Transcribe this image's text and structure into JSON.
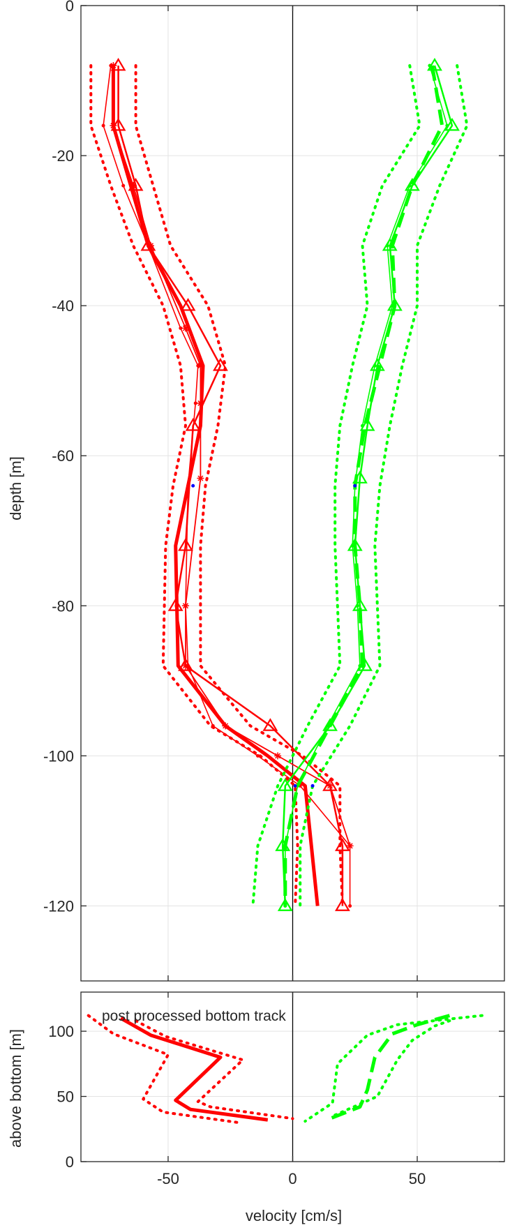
{
  "chart_data": [
    {
      "type": "line",
      "panel": "top",
      "xlabel": "",
      "ylabel": "depth [m]",
      "xlim": [
        -85,
        85
      ],
      "ylim": [
        -130,
        0
      ],
      "xticks": [
        -50,
        0,
        50
      ],
      "yticks": [
        0,
        -20,
        -40,
        -60,
        -80,
        -100,
        -120
      ],
      "ytick_labels": [
        "0",
        "-20",
        "-40",
        "-60",
        "-80",
        "-100",
        "-120"
      ],
      "grid": true,
      "zero_line": true,
      "colors": {
        "u": "#ff0000",
        "v": "#00ff00",
        "dots": "#0000ff",
        "zero": "#000000"
      },
      "series": [
        {
          "component": "u",
          "style": "thick",
          "x": [
            -72,
            -72,
            -65,
            -58,
            -45,
            -36,
            -37,
            -42,
            -47,
            -46,
            -27,
            -10,
            5,
            10
          ],
          "y": [
            -8,
            -16,
            -24,
            -32,
            -40,
            -48,
            -56,
            -64,
            -72,
            -88,
            -96,
            -100,
            -104,
            -120
          ]
        },
        {
          "component": "u",
          "style": "triangles",
          "x": [
            -70,
            -70,
            -63,
            -58,
            -42,
            -29,
            -40,
            -43,
            -47,
            -43,
            -9,
            15,
            20,
            20
          ],
          "y": [
            -8,
            -16,
            -24,
            -32,
            -40,
            -48,
            -56,
            -72,
            -80,
            -88,
            -96,
            -104,
            -112,
            -120
          ]
        },
        {
          "component": "u",
          "style": "stars",
          "x": [
            -72,
            -72,
            -64,
            -57,
            -43,
            -37,
            -37,
            -37,
            -43,
            -43,
            -27,
            -6,
            15,
            23
          ],
          "y": [
            -8,
            -16,
            -24,
            -32,
            -43,
            -48,
            -53,
            -63,
            -80,
            -88,
            -96,
            -100,
            -104,
            -112
          ]
        },
        {
          "component": "u",
          "style": "dots",
          "x": [
            -73,
            -76,
            -68,
            -58,
            -45,
            -38,
            -39,
            -42,
            -43,
            -42,
            -32,
            -14,
            3,
            23,
            23
          ],
          "y": [
            -8,
            -16,
            -24,
            -32,
            -43,
            -48,
            -53,
            -64,
            -80,
            -88,
            -96,
            -100,
            -104,
            -112,
            -120
          ]
        },
        {
          "component": "u",
          "style": "dotted",
          "x": [
            -81,
            -81,
            -73,
            -64,
            -52,
            -45,
            -43,
            -48,
            -51,
            -52,
            -33,
            -13,
            1,
            2,
            1
          ],
          "y": [
            -8,
            -16,
            -24,
            -32,
            -40,
            -48,
            -56,
            -64,
            -72,
            -88,
            -96,
            -100,
            -104,
            -112,
            -120
          ]
        },
        {
          "component": "u",
          "style": "dotted",
          "x": [
            -63,
            -63,
            -56,
            -49,
            -34,
            -27,
            -30,
            -35,
            -37,
            -37,
            -17,
            4,
            19,
            19,
            20
          ],
          "y": [
            -8,
            -16,
            -24,
            -32,
            -40,
            -48,
            -56,
            -64,
            -72,
            -88,
            -96,
            -100,
            -104,
            -112,
            -120
          ]
        },
        {
          "component": "v",
          "style": "dashed",
          "x": [
            56,
            60,
            48,
            40,
            41,
            35,
            29,
            25,
            25,
            27,
            28,
            15,
            2,
            -3,
            -3
          ],
          "y": [
            -8,
            -16,
            -24,
            -32,
            -40,
            -48,
            -56,
            -64,
            -72,
            -80,
            -88,
            -96,
            -104,
            -112,
            -120
          ]
        },
        {
          "component": "v",
          "style": "triangles",
          "x": [
            57,
            64,
            48,
            39,
            41,
            34,
            30,
            27,
            25,
            27,
            29,
            15,
            -3,
            -4,
            -3
          ],
          "y": [
            -8,
            -16,
            -24,
            -32,
            -40,
            -48,
            -56,
            -63,
            -72,
            -80,
            -88,
            -96,
            -104,
            -112,
            -120
          ]
        },
        {
          "component": "v",
          "style": "dots",
          "x": [
            55,
            62,
            47,
            38,
            40,
            33,
            28,
            25,
            24,
            26,
            27,
            14,
            2,
            -3,
            -3
          ],
          "y": [
            -8,
            -16,
            -24,
            -32,
            -40,
            -48,
            -56,
            -64,
            -72,
            -80,
            -88,
            -96,
            -104,
            -112,
            -120
          ]
        },
        {
          "component": "v",
          "style": "dotted",
          "x": [
            47,
            51,
            36,
            28,
            30,
            24,
            19,
            17,
            17,
            18,
            19,
            6,
            -6,
            -14,
            -16
          ],
          "y": [
            -8,
            -16,
            -24,
            -32,
            -40,
            -48,
            -56,
            -64,
            -72,
            -80,
            -88,
            -96,
            -104,
            -112,
            -120
          ]
        },
        {
          "component": "v",
          "style": "dotted",
          "x": [
            66,
            70,
            59,
            50,
            50,
            44,
            39,
            35,
            33,
            34,
            35,
            23,
            8,
            3,
            3
          ],
          "y": [
            -8,
            -16,
            -24,
            -32,
            -40,
            -48,
            -56,
            -64,
            -72,
            -80,
            -88,
            -96,
            -104,
            -112,
            -120
          ]
        }
      ],
      "blue_dots": [
        [
          -40,
          -64
        ],
        [
          25,
          -64
        ],
        [
          1,
          -104
        ],
        [
          8,
          -104
        ]
      ]
    },
    {
      "type": "line",
      "panel": "bottom",
      "xlabel": "velocity [cm/s]",
      "ylabel": "above bottom [m]",
      "xlim": [
        -85,
        85
      ],
      "ylim": [
        0,
        130
      ],
      "xticks": [
        -50,
        0,
        50
      ],
      "xtick_labels": [
        "-50",
        "0",
        "50"
      ],
      "yticks": [
        0,
        50,
        100
      ],
      "ytick_labels": [
        "0",
        "50",
        "100"
      ],
      "annotations": [
        "post processed bottom track"
      ],
      "grid": true,
      "zero_line": true,
      "series": [
        {
          "component": "u",
          "style": "thick",
          "x": [
            -69,
            -57,
            -29,
            -47,
            -41,
            -10
          ],
          "y": [
            110,
            97,
            80,
            47,
            40,
            32
          ]
        },
        {
          "component": "u",
          "style": "dotted",
          "x": [
            -82,
            -72,
            -50,
            -60,
            -52,
            -22
          ],
          "y": [
            112,
            98,
            82,
            48,
            38,
            30
          ]
        },
        {
          "component": "u",
          "style": "dotted",
          "x": [
            -63,
            -51,
            -20,
            -38,
            -33,
            0
          ],
          "y": [
            108,
            96,
            78,
            46,
            42,
            33
          ]
        },
        {
          "component": "v",
          "style": "dashed",
          "x": [
            63,
            50,
            40,
            33,
            30,
            27,
            15
          ],
          "y": [
            112,
            105,
            98,
            80,
            55,
            42,
            33
          ]
        },
        {
          "component": "v",
          "style": "dotted",
          "x": [
            76,
            42,
            30,
            18,
            16,
            5
          ],
          "y": [
            112,
            105,
            97,
            75,
            45,
            31
          ]
        },
        {
          "component": "v",
          "style": "dotted",
          "x": [
            63,
            57,
            48,
            42,
            34,
            15
          ],
          "y": [
            108,
            104,
            93,
            78,
            50,
            34
          ]
        }
      ]
    }
  ]
}
